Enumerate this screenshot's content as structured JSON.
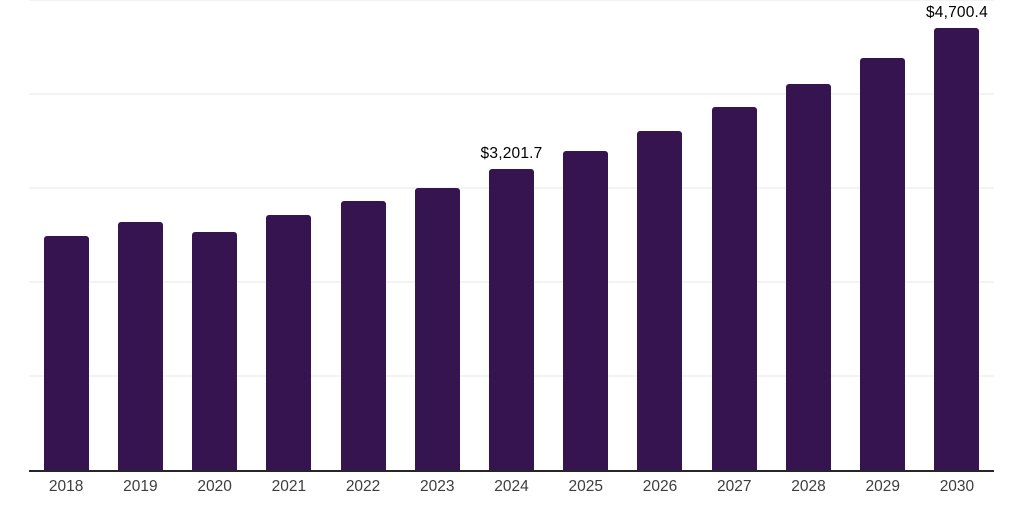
{
  "chart_data": {
    "type": "bar",
    "title": "",
    "categories": [
      "2018",
      "2019",
      "2020",
      "2021",
      "2022",
      "2023",
      "2024",
      "2025",
      "2026",
      "2027",
      "2028",
      "2029",
      "2030"
    ],
    "values": [
      2490,
      2640,
      2530,
      2710,
      2860,
      3000,
      3201.7,
      3390,
      3610,
      3860,
      4110,
      4380,
      4700.4
    ],
    "data_labels": [
      {
        "category": "2024",
        "text": "$3,201.7"
      },
      {
        "category": "2030",
        "text": "$4,700.4"
      }
    ],
    "xlabel": "",
    "ylabel": "",
    "ylim": [
      0,
      5000
    ],
    "gridline_interval": 1000,
    "grid": "horizontal-only",
    "legend": "none",
    "y_tick_labels_visible": false,
    "colors": {
      "bar": "#361450",
      "axis_line": "#262626",
      "gridline": "#f3f3f3",
      "x_tick_label": "#3d3d3d",
      "data_label": "#000000",
      "background": "#ffffff"
    }
  }
}
